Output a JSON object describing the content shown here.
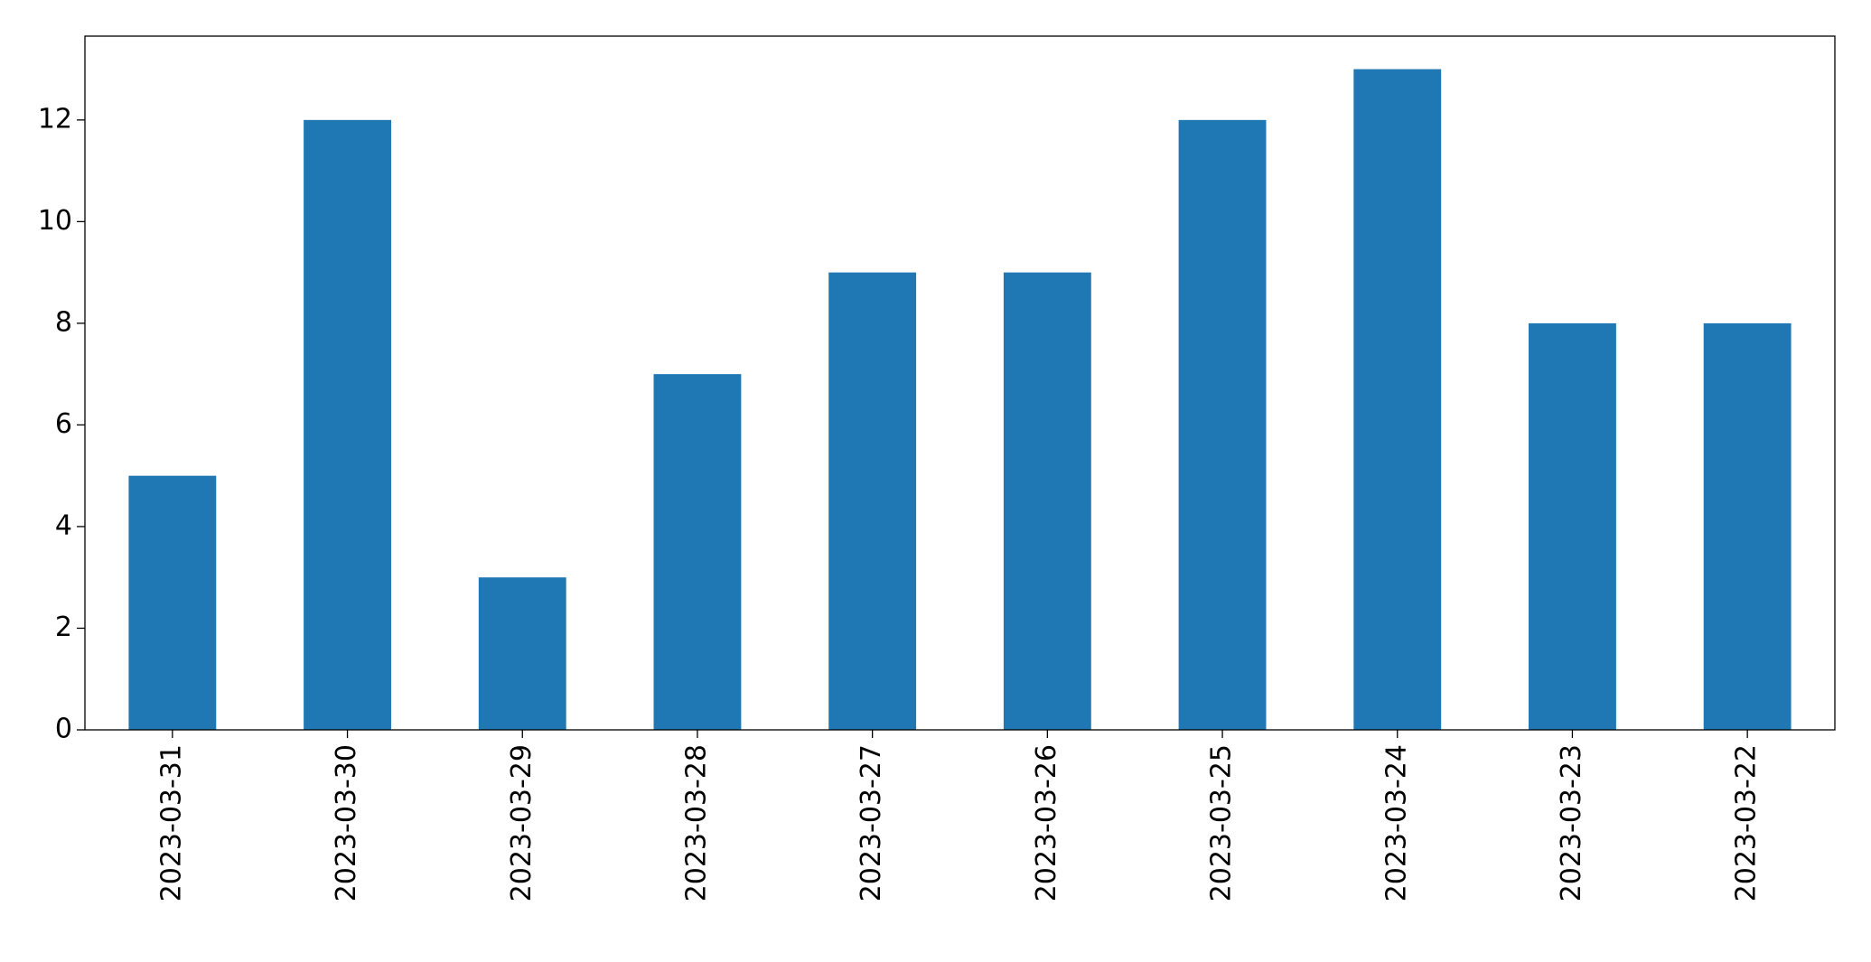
{
  "chart_data": {
    "type": "bar",
    "categories": [
      "2023-03-31",
      "2023-03-30",
      "2023-03-29",
      "2023-03-28",
      "2023-03-27",
      "2023-03-26",
      "2023-03-25",
      "2023-03-24",
      "2023-03-23",
      "2023-03-22"
    ],
    "values": [
      5,
      12,
      3,
      7,
      9,
      9,
      12,
      13,
      8,
      8
    ],
    "color": "#1f77b4",
    "ylim": [
      0,
      13.65
    ],
    "yticks": [
      0,
      2,
      4,
      6,
      8,
      10,
      12
    ],
    "grid": false
  }
}
